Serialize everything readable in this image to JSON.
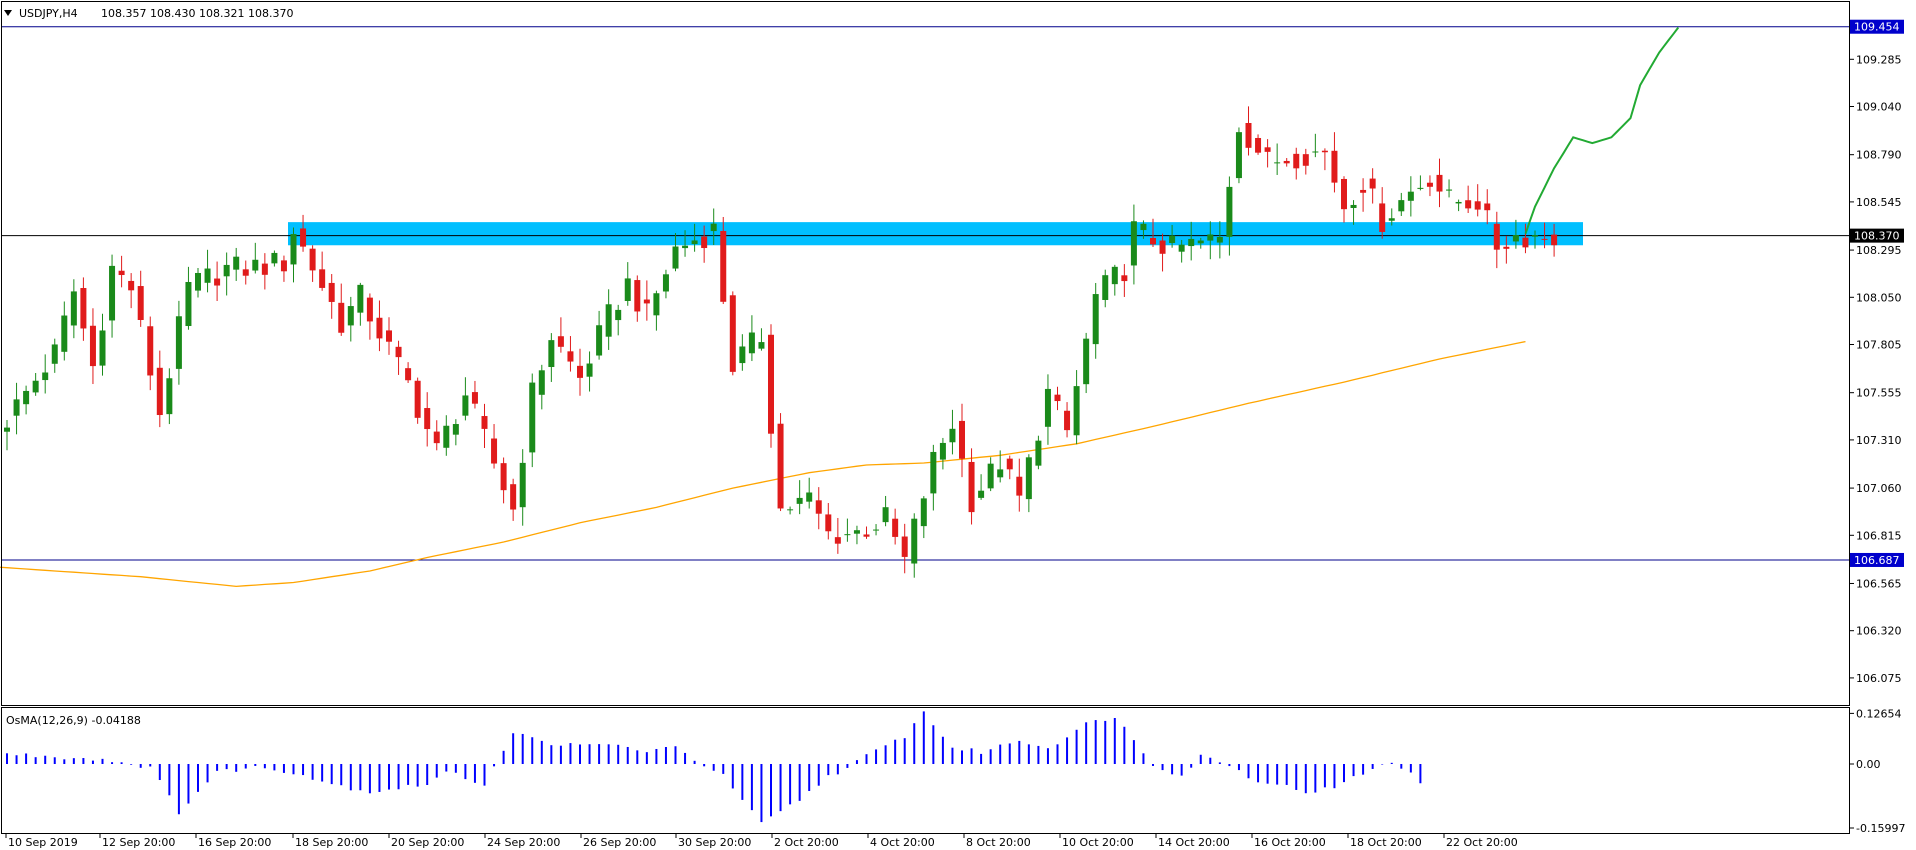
{
  "main": {
    "symbol_label": "USDJPY,H4",
    "ohlc_label": "108.357 108.430 108.321 108.370"
  },
  "osma": {
    "label": "OsMA(12,26,9) -0.04188"
  },
  "colors": {
    "bull": "#1a8a1a",
    "bear": "#e01b1b",
    "zone": "#00bfff",
    "ma": "#ffa500",
    "forecast": "#22aa33",
    "hline": "#00008b",
    "osma": "#0000ff",
    "tag_blue": "#0000cc",
    "tag_black": "#000000"
  },
  "chart_data": [
    {
      "type": "candlestick",
      "title": "USDJPY,H4",
      "ylim": [
        105.95,
        109.52
      ],
      "y_ticks": [
        106.075,
        106.32,
        106.565,
        106.815,
        107.06,
        107.31,
        107.555,
        107.805,
        108.05,
        108.295,
        108.545,
        108.79,
        109.04,
        109.285
      ],
      "x_ticks": [
        "10 Sep 2019",
        "12 Sep 20:00",
        "16 Sep 20:00",
        "18 Sep 20:00",
        "20 Sep 20:00",
        "24 Sep 20:00",
        "26 Sep 20:00",
        "30 Sep 20:00",
        "2 Oct 20:00",
        "4 Oct 20:00",
        "8 Oct 20:00",
        "10 Oct 20:00",
        "14 Oct 20:00",
        "16 Oct 20:00",
        "18 Oct 20:00",
        "22 Oct 20:00"
      ],
      "grid": false,
      "current_price": 108.37,
      "horizontal_lines": [
        {
          "label": "109.454",
          "value": 109.454
        },
        {
          "label": "106.687",
          "value": 106.687
        }
      ],
      "zone": {
        "low": 108.32,
        "high": 108.44
      },
      "candle_count": 163,
      "waypoints": [
        [
          0,
          107.35
        ],
        [
          6,
          107.76
        ],
        [
          8,
          108.08
        ],
        [
          10,
          107.69
        ],
        [
          12,
          108.2
        ],
        [
          14,
          108.1
        ],
        [
          17,
          107.45
        ],
        [
          20,
          108.1
        ],
        [
          24,
          108.2
        ],
        [
          26,
          108.2
        ],
        [
          30,
          108.23
        ],
        [
          31,
          108.4
        ],
        [
          36,
          107.92
        ],
        [
          38,
          108.05
        ],
        [
          43,
          107.6
        ],
        [
          46,
          107.25
        ],
        [
          49,
          107.55
        ],
        [
          54,
          106.95
        ],
        [
          56,
          107.55
        ],
        [
          58,
          107.85
        ],
        [
          61,
          107.63
        ],
        [
          64,
          107.95
        ],
        [
          66,
          108.12
        ],
        [
          68,
          107.95
        ],
        [
          71,
          108.3
        ],
        [
          75,
          108.4
        ],
        [
          77,
          107.7
        ],
        [
          80,
          107.85
        ],
        [
          82,
          106.95
        ],
        [
          85,
          107.0
        ],
        [
          87,
          106.82
        ],
        [
          90,
          106.83
        ],
        [
          93,
          106.9
        ],
        [
          95,
          106.68
        ],
        [
          98,
          107.2
        ],
        [
          100,
          107.4
        ],
        [
          102,
          107.0
        ],
        [
          105,
          107.2
        ],
        [
          107,
          107.0
        ],
        [
          110,
          107.55
        ],
        [
          112,
          107.35
        ],
        [
          115,
          108.05
        ],
        [
          118,
          108.2
        ],
        [
          119,
          108.4
        ],
        [
          123,
          108.3
        ],
        [
          128,
          108.35
        ],
        [
          130,
          108.95
        ],
        [
          133,
          108.75
        ],
        [
          137,
          108.8
        ],
        [
          139,
          108.8
        ],
        [
          141,
          108.53
        ],
        [
          143,
          108.65
        ],
        [
          145,
          108.45
        ],
        [
          148,
          108.6
        ],
        [
          150,
          108.68
        ],
        [
          152,
          108.55
        ],
        [
          155,
          108.55
        ],
        [
          157,
          108.32
        ],
        [
          159,
          108.37
        ]
      ],
      "moving_average": [
        [
          -1,
          106.65
        ],
        [
          14,
          106.6
        ],
        [
          24,
          106.55
        ],
        [
          30,
          106.57
        ],
        [
          38,
          106.63
        ],
        [
          44,
          106.7
        ],
        [
          52,
          106.78
        ],
        [
          60,
          106.88
        ],
        [
          68,
          106.96
        ],
        [
          76,
          107.06
        ],
        [
          84,
          107.14
        ],
        [
          90,
          107.18
        ],
        [
          96,
          107.19
        ],
        [
          104,
          107.23
        ],
        [
          112,
          107.29
        ],
        [
          120,
          107.38
        ],
        [
          130,
          107.5
        ],
        [
          140,
          107.61
        ],
        [
          150,
          107.73
        ],
        [
          159,
          107.82
        ]
      ],
      "forecast": [
        [
          159,
          108.38
        ],
        [
          160,
          108.52
        ],
        [
          162,
          108.72
        ],
        [
          164,
          108.88
        ],
        [
          166,
          108.85
        ],
        [
          168,
          108.88
        ],
        [
          170,
          108.98
        ],
        [
          171,
          109.15
        ],
        [
          173,
          109.32
        ],
        [
          175,
          109.45
        ]
      ]
    },
    {
      "type": "bar",
      "title": "OsMA(12,26,9) -0.04188",
      "ylim": [
        -0.17,
        0.14
      ],
      "y_ticks": [
        0.12654,
        0.0,
        -0.15997
      ],
      "waypoints": [
        [
          0,
          0.025
        ],
        [
          10,
          0.012
        ],
        [
          15,
          -0.008
        ],
        [
          18,
          -0.12
        ],
        [
          22,
          -0.02
        ],
        [
          26,
          -0.008
        ],
        [
          30,
          -0.02
        ],
        [
          34,
          -0.05
        ],
        [
          38,
          -0.07
        ],
        [
          44,
          -0.05
        ],
        [
          46,
          -0.02
        ],
        [
          50,
          -0.05
        ],
        [
          53,
          0.08
        ],
        [
          56,
          0.055
        ],
        [
          60,
          0.045
        ],
        [
          64,
          0.05
        ],
        [
          66,
          0.032
        ],
        [
          70,
          0.04
        ],
        [
          75,
          -0.03
        ],
        [
          79,
          -0.15
        ],
        [
          83,
          -0.09
        ],
        [
          86,
          -0.03
        ],
        [
          88,
          -0.01
        ],
        [
          90,
          0.02
        ],
        [
          94,
          0.07
        ],
        [
          96,
          0.13
        ],
        [
          99,
          0.04
        ],
        [
          102,
          0.03
        ],
        [
          106,
          0.06
        ],
        [
          109,
          0.04
        ],
        [
          113,
          0.1
        ],
        [
          116,
          0.12
        ],
        [
          118,
          0.06
        ],
        [
          120,
          0.0
        ],
        [
          123,
          -0.03
        ],
        [
          125,
          0.02
        ],
        [
          128,
          0.0
        ],
        [
          130,
          -0.035
        ],
        [
          133,
          -0.05
        ],
        [
          136,
          -0.07
        ],
        [
          139,
          -0.06
        ],
        [
          143,
          -0.01
        ],
        [
          145,
          0.0
        ],
        [
          147,
          -0.02
        ],
        [
          148,
          -0.045
        ]
      ]
    }
  ]
}
